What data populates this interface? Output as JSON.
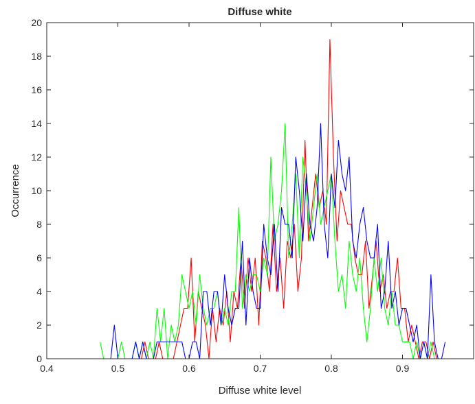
{
  "chart_data": {
    "type": "line",
    "title": "Diffuse white",
    "xlabel": "Diffuse white level",
    "ylabel": "Occurrence",
    "xlim": [
      0.4,
      1.0
    ],
    "ylim": [
      0,
      20
    ],
    "xticks": [
      0.4,
      0.5,
      0.6,
      0.7,
      0.8,
      0.9
    ],
    "xtick_labels": [
      "0.4",
      "0.5",
      "0.6",
      "0.7",
      "0.8",
      "0.9"
    ],
    "yticks": [
      0,
      2,
      4,
      6,
      8,
      10,
      12,
      14,
      16,
      18,
      20
    ],
    "ytick_labels": [
      "0",
      "2",
      "4",
      "6",
      "8",
      "10",
      "12",
      "14",
      "16",
      "18",
      "20"
    ],
    "grid": false,
    "box": true,
    "series": [
      {
        "color": "#ff0000",
        "x": [
          0.478,
          0.483,
          0.488,
          0.493,
          0.498,
          0.503,
          0.508,
          0.513,
          0.518,
          0.523,
          0.528,
          0.533,
          0.538,
          0.543,
          0.548,
          0.553,
          0.558,
          0.563,
          0.568,
          0.573,
          0.578,
          0.583,
          0.588,
          0.593,
          0.598,
          0.603,
          0.608,
          0.613,
          0.618,
          0.623,
          0.628,
          0.633,
          0.638,
          0.643,
          0.648,
          0.653,
          0.658,
          0.663,
          0.668,
          0.673,
          0.678,
          0.683,
          0.688,
          0.693,
          0.698,
          0.703,
          0.708,
          0.713,
          0.718,
          0.723,
          0.728,
          0.733,
          0.738,
          0.743,
          0.748,
          0.753,
          0.758,
          0.763,
          0.768,
          0.773,
          0.778,
          0.783,
          0.788,
          0.793,
          0.798,
          0.803,
          0.808,
          0.813,
          0.818,
          0.823,
          0.828,
          0.833,
          0.838,
          0.843,
          0.848,
          0.853,
          0.858,
          0.863,
          0.868,
          0.873,
          0.878,
          0.883,
          0.888,
          0.893,
          0.898,
          0.903,
          0.908,
          0.913,
          0.918,
          0.923,
          0.928,
          0.933,
          0.938,
          0.943,
          0.948,
          0.953
        ],
        "y": [
          0,
          0,
          0,
          0,
          0,
          0,
          0,
          0,
          0,
          0,
          0,
          0,
          1,
          0,
          0,
          0,
          1,
          0,
          0,
          0,
          0,
          1,
          2,
          3,
          3,
          6,
          1,
          4,
          3,
          2,
          0,
          3,
          1,
          3,
          2,
          4,
          1,
          4,
          3,
          6,
          3,
          6,
          4,
          6,
          2,
          7,
          6,
          4,
          8,
          4,
          6,
          3,
          7,
          6,
          8,
          4,
          6,
          13,
          7,
          9,
          11,
          9,
          10,
          8,
          19,
          12,
          7,
          10,
          9,
          8,
          8,
          6,
          5,
          5,
          7,
          3,
          5,
          7,
          4,
          5,
          3,
          4,
          4,
          6,
          3,
          3,
          1,
          2,
          1,
          0,
          1,
          1,
          0,
          1,
          0,
          0
        ]
      },
      {
        "color": "#00ff00",
        "x": [
          0.475,
          0.48,
          0.485,
          0.49,
          0.495,
          0.5,
          0.505,
          0.51,
          0.515,
          0.52,
          0.525,
          0.53,
          0.535,
          0.54,
          0.545,
          0.55,
          0.555,
          0.56,
          0.565,
          0.57,
          0.575,
          0.58,
          0.585,
          0.59,
          0.595,
          0.6,
          0.605,
          0.61,
          0.615,
          0.62,
          0.625,
          0.63,
          0.635,
          0.64,
          0.645,
          0.65,
          0.655,
          0.66,
          0.665,
          0.67,
          0.675,
          0.68,
          0.685,
          0.69,
          0.695,
          0.7,
          0.705,
          0.71,
          0.715,
          0.72,
          0.725,
          0.73,
          0.735,
          0.74,
          0.745,
          0.75,
          0.755,
          0.76,
          0.765,
          0.77,
          0.775,
          0.78,
          0.785,
          0.79,
          0.795,
          0.8,
          0.805,
          0.81,
          0.815,
          0.82,
          0.825,
          0.83,
          0.835,
          0.84,
          0.845,
          0.85,
          0.855,
          0.86,
          0.865,
          0.87,
          0.875,
          0.88,
          0.885,
          0.89,
          0.895,
          0.9,
          0.905,
          0.91,
          0.915,
          0.92,
          0.925,
          0.93,
          0.935,
          0.94,
          0.945,
          0.95,
          0.955
        ],
        "y": [
          1,
          0,
          0,
          0,
          0,
          0,
          1,
          0,
          0,
          0,
          1,
          0,
          1,
          0,
          1,
          0,
          3,
          1,
          3,
          0,
          2,
          1,
          2,
          5,
          4,
          3,
          4,
          2,
          5,
          3,
          2,
          3,
          3,
          4,
          2,
          3,
          2,
          4,
          4,
          9,
          3,
          5,
          4,
          5,
          5,
          4,
          6,
          5,
          12,
          7,
          8,
          10,
          14,
          6,
          8,
          11,
          6,
          12,
          10,
          7,
          9,
          11,
          8,
          9,
          10,
          11,
          7,
          4,
          5,
          3,
          7,
          5,
          4,
          6,
          3,
          1,
          3,
          6,
          4,
          6,
          3,
          2,
          4,
          2,
          2,
          1,
          1,
          1,
          0,
          1,
          0,
          1,
          0,
          1,
          0,
          0,
          0
        ]
      },
      {
        "color": "#0000ff",
        "x": [
          0.48,
          0.485,
          0.49,
          0.495,
          0.5,
          0.505,
          0.51,
          0.515,
          0.52,
          0.525,
          0.53,
          0.535,
          0.54,
          0.545,
          0.55,
          0.555,
          0.56,
          0.565,
          0.57,
          0.575,
          0.58,
          0.585,
          0.59,
          0.595,
          0.6,
          0.605,
          0.61,
          0.615,
          0.62,
          0.625,
          0.63,
          0.635,
          0.64,
          0.645,
          0.65,
          0.655,
          0.66,
          0.665,
          0.67,
          0.675,
          0.68,
          0.685,
          0.69,
          0.695,
          0.7,
          0.705,
          0.71,
          0.715,
          0.72,
          0.725,
          0.73,
          0.735,
          0.74,
          0.745,
          0.75,
          0.755,
          0.76,
          0.765,
          0.77,
          0.775,
          0.78,
          0.785,
          0.79,
          0.795,
          0.8,
          0.805,
          0.81,
          0.815,
          0.82,
          0.825,
          0.83,
          0.835,
          0.84,
          0.845,
          0.85,
          0.855,
          0.86,
          0.865,
          0.87,
          0.875,
          0.88,
          0.885,
          0.89,
          0.895,
          0.9,
          0.905,
          0.91,
          0.915,
          0.92,
          0.925,
          0.93,
          0.935,
          0.94,
          0.945,
          0.95,
          0.955,
          0.96
        ],
        "y": [
          0,
          0,
          0,
          2,
          0,
          0,
          0,
          0,
          0,
          1,
          0,
          1,
          0,
          0,
          0,
          1,
          1,
          1,
          1,
          1,
          1,
          1,
          1,
          0,
          0,
          1,
          1,
          0,
          4,
          4,
          2,
          4,
          4,
          2,
          5,
          3,
          2,
          3,
          3,
          7,
          2,
          6,
          4,
          3,
          3,
          8,
          6,
          5,
          8,
          4,
          9,
          8,
          8,
          6,
          12,
          10,
          7,
          11,
          8,
          7,
          9,
          14,
          8,
          6,
          11,
          9,
          13,
          11,
          10,
          12,
          7,
          6,
          8,
          9,
          7,
          6,
          6,
          8,
          3,
          4,
          7,
          3,
          4,
          2,
          3,
          3,
          2,
          1,
          2,
          0,
          1,
          0,
          5,
          1,
          0,
          0,
          1
        ]
      }
    ]
  }
}
